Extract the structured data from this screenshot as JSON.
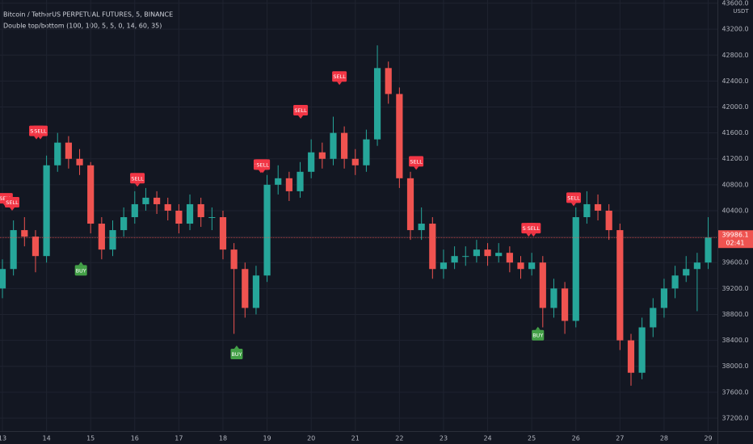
{
  "chart_data": {
    "type": "candlestick",
    "title": "Bitcoin / TetherUS PERPETUAL FUTURES, 5, BINANCE",
    "subtitle": "Double top/bottom (100, 100, 5, 5, 0, 14, 60, 35)",
    "y_axis_label": "USDT",
    "up_color": "#26a69a",
    "down_color": "#ef5350",
    "grid": true,
    "x": [
      13,
      13.25,
      13.5,
      13.75,
      14,
      14.25,
      14.5,
      14.75,
      15,
      15.25,
      15.5,
      15.75,
      16,
      16.25,
      16.5,
      16.75,
      17,
      17.25,
      17.5,
      17.75,
      18,
      18.25,
      18.5,
      18.75,
      19,
      19.25,
      19.5,
      19.75,
      20,
      20.25,
      20.5,
      20.75,
      21,
      21.25,
      21.5,
      21.75,
      22,
      22.25,
      22.5,
      22.75,
      23,
      23.25,
      23.5,
      23.75,
      24,
      24.25,
      24.5,
      24.75,
      25,
      25.25,
      25.5,
      25.75,
      26,
      26.25,
      26.5,
      26.75,
      27,
      27.25,
      27.5,
      27.75,
      28,
      28.25,
      28.5,
      28.75,
      29
    ],
    "open": [
      39200,
      39500,
      40100,
      40000,
      39700,
      41100,
      41450,
      41200,
      41100,
      40200,
      39800,
      40100,
      40300,
      40500,
      40600,
      40500,
      40400,
      40200,
      40500,
      40300,
      40300,
      39800,
      39500,
      38900,
      39400,
      40800,
      40900,
      40700,
      41000,
      41300,
      41200,
      41600,
      41200,
      41100,
      41500,
      42600,
      42200,
      40900,
      40100,
      40200,
      39500,
      39600,
      39700,
      39700,
      39800,
      39700,
      39750,
      39600,
      39500,
      39600,
      38900,
      39200,
      38700,
      40300,
      40500,
      40400,
      40100,
      38400,
      37900,
      38600,
      38900,
      39200,
      39400,
      39500,
      39600
    ],
    "high": [
      39650,
      40250,
      40300,
      40100,
      41250,
      41600,
      41550,
      41350,
      41150,
      40300,
      40250,
      40450,
      40700,
      40750,
      40700,
      40600,
      40500,
      40650,
      40600,
      40450,
      40400,
      39900,
      39600,
      39550,
      40950,
      41100,
      41000,
      41150,
      41500,
      41450,
      41850,
      41700,
      41350,
      41650,
      42950,
      42700,
      42300,
      41000,
      40450,
      40300,
      39800,
      39850,
      39850,
      39950,
      39900,
      39900,
      39850,
      39700,
      39750,
      39700,
      39350,
      39300,
      40450,
      40700,
      40650,
      40500,
      40200,
      38500,
      38750,
      39050,
      39350,
      39550,
      39700,
      39750,
      40300
    ],
    "low": [
      39050,
      39400,
      39850,
      39450,
      39600,
      41000,
      41050,
      40950,
      40050,
      39650,
      39700,
      40000,
      40200,
      40400,
      40350,
      40250,
      40050,
      40100,
      40150,
      40100,
      39650,
      38500,
      38750,
      38800,
      39300,
      40650,
      40550,
      40600,
      40900,
      41050,
      41100,
      41050,
      40950,
      41000,
      41400,
      42050,
      40750,
      39950,
      39950,
      39350,
      39350,
      39500,
      39550,
      39600,
      39550,
      39600,
      39450,
      39350,
      39400,
      38600,
      38750,
      38500,
      38600,
      40200,
      40250,
      39950,
      38250,
      37700,
      37800,
      38450,
      38750,
      39050,
      39300,
      38850,
      39500
    ],
    "close": [
      39500,
      40100,
      40000,
      39700,
      41100,
      41450,
      41200,
      41100,
      40200,
      39800,
      40100,
      40300,
      40500,
      40600,
      40500,
      40400,
      40200,
      40500,
      40300,
      40300,
      39800,
      39500,
      38900,
      39400,
      40800,
      40900,
      40700,
      41000,
      41300,
      41200,
      41600,
      41200,
      41100,
      41500,
      42600,
      42200,
      40900,
      40100,
      40200,
      39500,
      39600,
      39700,
      39700,
      39800,
      39700,
      39750,
      39600,
      39500,
      39600,
      38900,
      39200,
      38700,
      40300,
      40500,
      40400,
      40100,
      38400,
      37900,
      38600,
      38900,
      39200,
      39400,
      39500,
      39600,
      39986.1
    ],
    "last_price": {
      "value": 39986.1,
      "label": "39986.1"
    },
    "countdown": "02:41",
    "signals": [
      {
        "label": "SELL",
        "x": 13.07,
        "y": 40460
      },
      {
        "label": "SELL",
        "x": 13.22,
        "y": 40400
      },
      {
        "label": "SELL",
        "x": 13.77,
        "y": 41500
      },
      {
        "label": "SELL",
        "x": 13.86,
        "y": 41500
      },
      {
        "label": "BUY",
        "x": 14.78,
        "y": 39610
      },
      {
        "label": "SELL",
        "x": 16.06,
        "y": 40770
      },
      {
        "label": "BUY",
        "x": 18.31,
        "y": 38320
      },
      {
        "label": "SELL",
        "x": 18.86,
        "y": 40980
      },
      {
        "label": "SELL",
        "x": 18.9,
        "y": 40980
      },
      {
        "label": "SELL",
        "x": 19.76,
        "y": 41820
      },
      {
        "label": "SELL",
        "x": 20.64,
        "y": 42340
      },
      {
        "label": "SELL",
        "x": 22.38,
        "y": 41030
      },
      {
        "label": "SELL",
        "x": 24.93,
        "y": 40000
      },
      {
        "label": "SELL",
        "x": 25.04,
        "y": 40000
      },
      {
        "label": "BUY",
        "x": 25.14,
        "y": 38610
      },
      {
        "label": "SELL",
        "x": 25.95,
        "y": 40470
      }
    ],
    "xlim": [
      12.945,
      29.21
    ],
    "xticks": [
      13,
      14,
      15,
      16,
      17,
      18,
      19,
      20,
      21,
      22,
      23,
      24,
      25,
      26,
      27,
      28,
      29
    ],
    "ylim": [
      37000,
      43650
    ],
    "yticks": [
      {
        "value": 37200,
        "label": "37200.0"
      },
      {
        "value": 37600,
        "label": "37600.0"
      },
      {
        "value": 38000,
        "label": "38000.0"
      },
      {
        "value": 38400,
        "label": "38400.0"
      },
      {
        "value": 38800,
        "label": "38800.0"
      },
      {
        "value": 39200,
        "label": "39200.0"
      },
      {
        "value": 39600,
        "label": "39600.0"
      },
      {
        "value": 40000,
        "label": "40000.0"
      },
      {
        "value": 40400,
        "label": "40400.0"
      },
      {
        "value": 40800,
        "label": "40800.0"
      },
      {
        "value": 41200,
        "label": "41200.0"
      },
      {
        "value": 41600,
        "label": "41600.0"
      },
      {
        "value": 42000,
        "label": "42000.0"
      },
      {
        "value": 42400,
        "label": "42400.0"
      },
      {
        "value": 42800,
        "label": "42800.0"
      },
      {
        "value": 43200,
        "label": "43200.0"
      },
      {
        "value": 43600,
        "label": "43600.0"
      }
    ]
  }
}
